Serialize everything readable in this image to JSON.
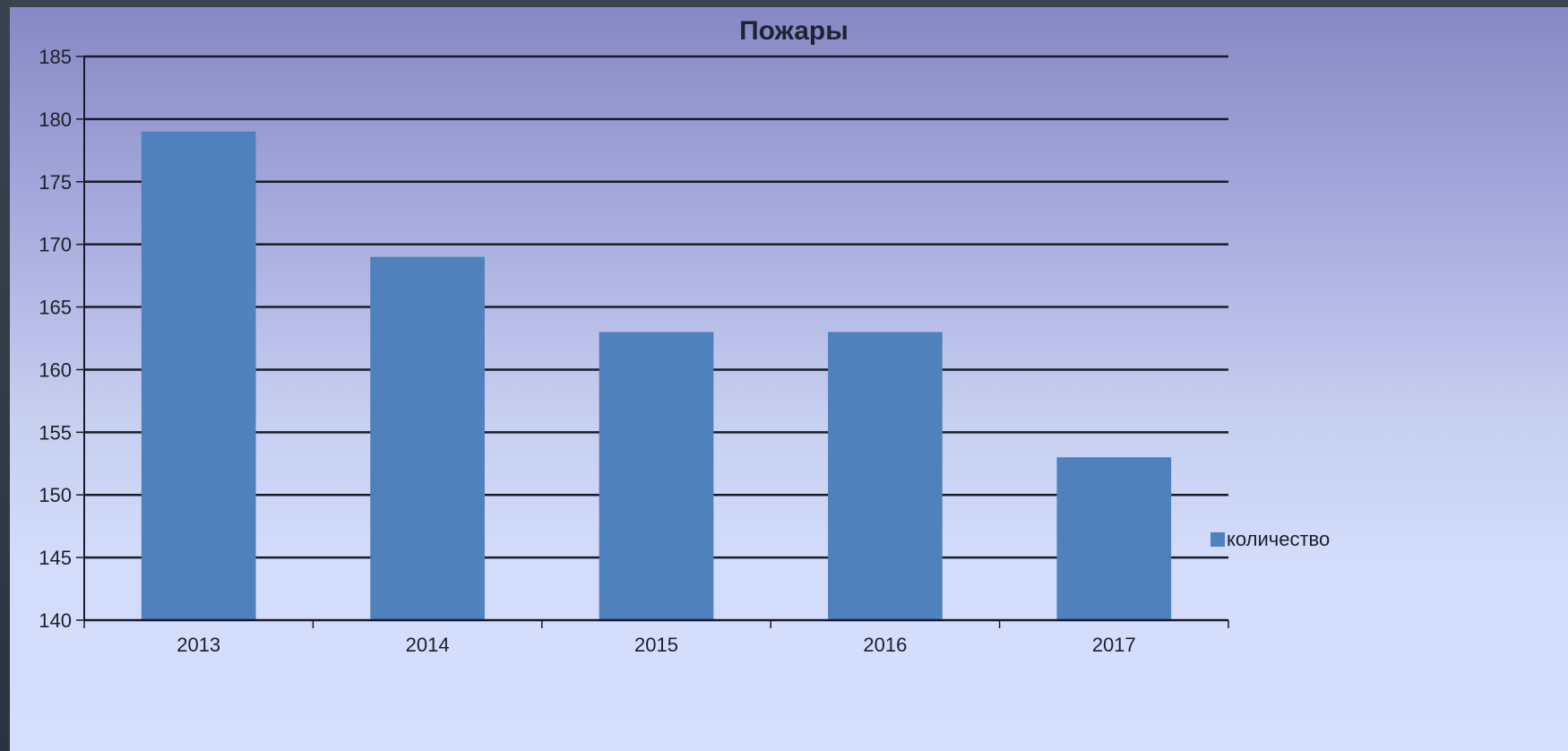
{
  "chart_data": {
    "type": "bar",
    "title": "Пожары",
    "categories": [
      "2013",
      "2014",
      "2015",
      "2016",
      "2017"
    ],
    "series": [
      {
        "name": "количество",
        "values": [
          179,
          169,
          163,
          163,
          153
        ]
      }
    ],
    "xlabel": "",
    "ylabel": "",
    "ylim": [
      140,
      185
    ],
    "yticks": [
      140,
      145,
      150,
      155,
      160,
      165,
      170,
      175,
      180,
      185
    ],
    "grid": true,
    "legend_position": "right"
  },
  "colors": {
    "bar": "#4f81bd",
    "gridline": "#1a1a2a",
    "axis": "#1a1a2a"
  }
}
